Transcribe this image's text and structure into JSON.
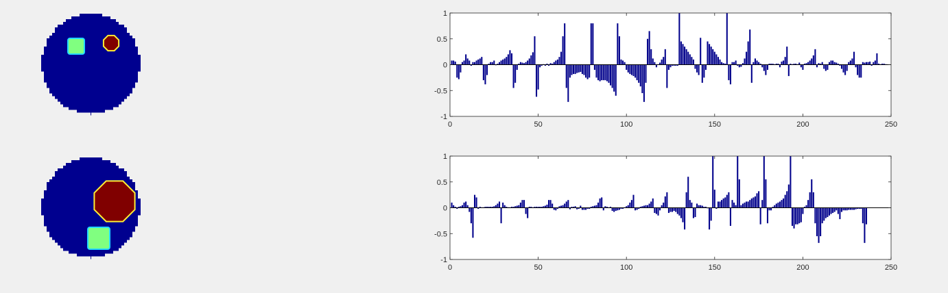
{
  "figure": {
    "background": "#f0f0f0",
    "colormap": "jet",
    "images": [
      {
        "shape": "disk-phantom",
        "background_color": "#00008f",
        "inclusions": [
          {
            "shape": "square",
            "color": "#80ff80"
          },
          {
            "shape": "octagon",
            "color": "#800000"
          }
        ]
      },
      {
        "shape": "disk-phantom",
        "background_color": "#00008f",
        "inclusions": [
          {
            "shape": "octagon",
            "color": "#800000"
          },
          {
            "shape": "square",
            "color": "#80ff80"
          }
        ]
      }
    ]
  },
  "chart_data": [
    {
      "type": "bar",
      "bar_color": "#00008b",
      "xlim": [
        0,
        250
      ],
      "ylim": [
        -1,
        1
      ],
      "xticks": [
        0,
        50,
        100,
        150,
        200,
        250
      ],
      "yticks": [
        -1,
        -0.5,
        0,
        0.5,
        1
      ],
      "xtick_labels": [
        "0",
        "50",
        "100",
        "150",
        "200",
        "250"
      ],
      "ytick_labels": [
        "-1",
        "-0.5",
        "0",
        "0.5",
        "1"
      ],
      "grid": false,
      "values": [
        0.08,
        0.08,
        0.06,
        -0.25,
        -0.28,
        -0.15,
        0.05,
        0.08,
        0.2,
        0.12,
        0.08,
        -0.02,
        0.05,
        0.05,
        0.08,
        0.1,
        0.12,
        0.15,
        -0.3,
        -0.38,
        -0.2,
        0.02,
        0.05,
        0.05,
        0.08,
        -0.01,
        0.02,
        0.05,
        0.08,
        0.1,
        0.12,
        0.15,
        0.2,
        0.28,
        0.22,
        -0.45,
        -0.35,
        -0.1,
        0.02,
        0.05,
        0.04,
        0.03,
        0.05,
        0.08,
        0.12,
        0.18,
        0.24,
        0.55,
        -0.62,
        -0.48,
        -0.05,
        -0.02,
        0.01,
        -0.02,
        0.02,
        -0.02,
        0.03,
        0.02,
        0.05,
        0.08,
        0.1,
        0.15,
        0.25,
        0.55,
        0.8,
        -0.45,
        -0.72,
        -0.25,
        -0.2,
        -0.18,
        -0.18,
        -0.16,
        -0.15,
        -0.14,
        -0.18,
        -0.2,
        -0.25,
        -0.28,
        -0.25,
        0.8,
        0.8,
        -0.1,
        -0.25,
        -0.3,
        -0.32,
        -0.3,
        -0.3,
        -0.3,
        -0.32,
        -0.35,
        -0.4,
        -0.45,
        -0.52,
        -0.6,
        0.8,
        0.55,
        0.1,
        0.08,
        0.05,
        -0.1,
        -0.15,
        -0.18,
        -0.2,
        -0.22,
        -0.25,
        -0.3,
        -0.35,
        -0.42,
        -0.55,
        -0.72,
        -0.35,
        0.5,
        0.65,
        0.3,
        0.12,
        0.05,
        -0.05,
        0.01,
        0.04,
        0.1,
        0.15,
        0.3,
        -0.45,
        -0.1,
        -0.05,
        -0.02,
        -0.02,
        -0.02,
        -0.02,
        1.0,
        0.45,
        0.4,
        0.35,
        0.3,
        0.25,
        0.2,
        0.15,
        0.1,
        -0.08,
        -0.15,
        -0.2,
        0.52,
        -0.35,
        -0.25,
        -0.1,
        0.45,
        0.4,
        0.35,
        0.3,
        0.25,
        0.2,
        0.15,
        0.1,
        0.05,
        0.03,
        0.02,
        1.0,
        -0.3,
        -0.38,
        0.05,
        0.05,
        0.08,
        -0.02,
        -0.05,
        -0.04,
        0.03,
        0.12,
        0.25,
        0.45,
        0.68,
        -0.35,
        0.05,
        0.12,
        0.08,
        0.05,
        0.02,
        -0.05,
        -0.12,
        -0.2,
        -0.1,
        0.02,
        0.02,
        0.02,
        0.01,
        0.02,
        0.02,
        -0.05,
        0.06,
        0.08,
        0.15,
        0.35,
        -0.22,
        0.02,
        0.01,
        0.02,
        0.02,
        0.01,
        0.04,
        -0.05,
        -0.1,
        0.02,
        0.03,
        0.05,
        0.08,
        0.12,
        0.18,
        0.3,
        -0.05,
        0.03,
        0.02,
        0.05,
        -0.08,
        -0.12,
        -0.1,
        0.05,
        0.08,
        0.08,
        0.05,
        0.04,
        0.02,
        -0.02,
        -0.08,
        -0.15,
        -0.2,
        -0.12,
        0.05,
        0.08,
        0.12,
        0.25,
        -0.05,
        -0.2,
        -0.25,
        -0.25,
        0.05,
        0.04,
        0.05,
        0.05,
        0.06,
        -0.02,
        0.05,
        0.08,
        0.22,
        0.02,
        0.01,
        0.02,
        0.02,
        0.01
      ]
    },
    {
      "type": "bar",
      "bar_color": "#00008b",
      "xlim": [
        0,
        250
      ],
      "ylim": [
        -1,
        1
      ],
      "xticks": [
        0,
        50,
        100,
        150,
        200,
        250
      ],
      "yticks": [
        -1,
        -0.5,
        0,
        0.5,
        1
      ],
      "xtick_labels": [
        "0",
        "50",
        "100",
        "150",
        "200",
        "250"
      ],
      "ytick_labels": [
        "-1",
        "-0.5",
        "0",
        "0.5",
        "1"
      ],
      "grid": false,
      "values": [
        0.1,
        0.05,
        0.02,
        -0.02,
        0.02,
        0.03,
        0.05,
        0.1,
        0.12,
        0.05,
        -0.08,
        -0.3,
        -0.58,
        0.25,
        0.2,
        -0.02,
        0.02,
        0.01,
        0.01,
        0.02,
        0.02,
        0.02,
        0.02,
        0.02,
        0.03,
        0.05,
        0.08,
        0.12,
        -0.3,
        0.1,
        0.05,
        0.02,
        0.01,
        0.01,
        0.02,
        0.02,
        0.03,
        0.04,
        0.05,
        0.1,
        0.15,
        0.15,
        -0.12,
        -0.2,
        0.02,
        0.02,
        0.01,
        0.02,
        0.02,
        0.02,
        0.02,
        0.02,
        0.03,
        0.04,
        0.06,
        0.15,
        0.15,
        0.08,
        -0.04,
        -0.05,
        -0.02,
        0.03,
        0.04,
        0.05,
        0.08,
        0.12,
        0.15,
        -0.03,
        0.02,
        0.02,
        0.03,
        -0.03,
        -0.02,
        0.04,
        -0.04,
        -0.04,
        -0.04,
        -0.02,
        -0.02,
        0.02,
        0.03,
        0.04,
        0.05,
        0.1,
        0.18,
        0.2,
        -0.05,
        0.03,
        0.02,
        0.01,
        0.02,
        -0.06,
        -0.08,
        -0.06,
        -0.05,
        -0.04,
        -0.02,
        -0.02,
        0.01,
        0.03,
        0.05,
        0.1,
        0.15,
        0.25,
        -0.05,
        -0.04,
        -0.02,
        0.02,
        0.03,
        0.04,
        0.05,
        0.05,
        0.08,
        0.12,
        0.18,
        -0.1,
        -0.12,
        -0.15,
        -0.05,
        0.05,
        0.1,
        0.22,
        0.3,
        -0.1,
        -0.08,
        -0.08,
        -0.06,
        -0.08,
        -0.12,
        -0.15,
        -0.2,
        -0.28,
        -0.42,
        0.3,
        0.6,
        0.15,
        0.1,
        -0.2,
        -0.18,
        0.08,
        0.05,
        0.05,
        0.04,
        0.02,
        0.02,
        -0.01,
        -0.42,
        -0.25,
        1.0,
        0.35,
        -0.02,
        0.12,
        0.12,
        0.15,
        0.18,
        0.2,
        0.25,
        0.3,
        -0.35,
        0.15,
        0.1,
        0.05,
        1.0,
        0.55,
        0.05,
        0.08,
        0.1,
        0.12,
        0.12,
        0.15,
        0.18,
        0.2,
        0.22,
        0.28,
        0.32,
        -0.32,
        0.15,
        1.0,
        0.55,
        -0.3,
        -0.05,
        -0.05,
        0.02,
        0.05,
        0.08,
        0.1,
        0.12,
        0.15,
        0.18,
        0.25,
        0.32,
        0.45,
        1.0,
        -0.35,
        -0.4,
        -0.32,
        -0.32,
        -0.3,
        -0.28,
        -0.12,
        0.02,
        0.05,
        0.15,
        0.3,
        0.55,
        0.3,
        -0.3,
        -0.55,
        -0.68,
        -0.55,
        -0.3,
        -0.25,
        -0.2,
        -0.18,
        -0.15,
        -0.12,
        -0.1,
        -0.08,
        -0.05,
        -0.12,
        -0.22,
        -0.08,
        -0.05,
        -0.05,
        -0.05,
        -0.04,
        -0.04,
        -0.04,
        -0.04,
        -0.03,
        -0.02,
        -0.02,
        -0.02,
        -0.3,
        -0.68,
        -0.32
      ]
    }
  ]
}
